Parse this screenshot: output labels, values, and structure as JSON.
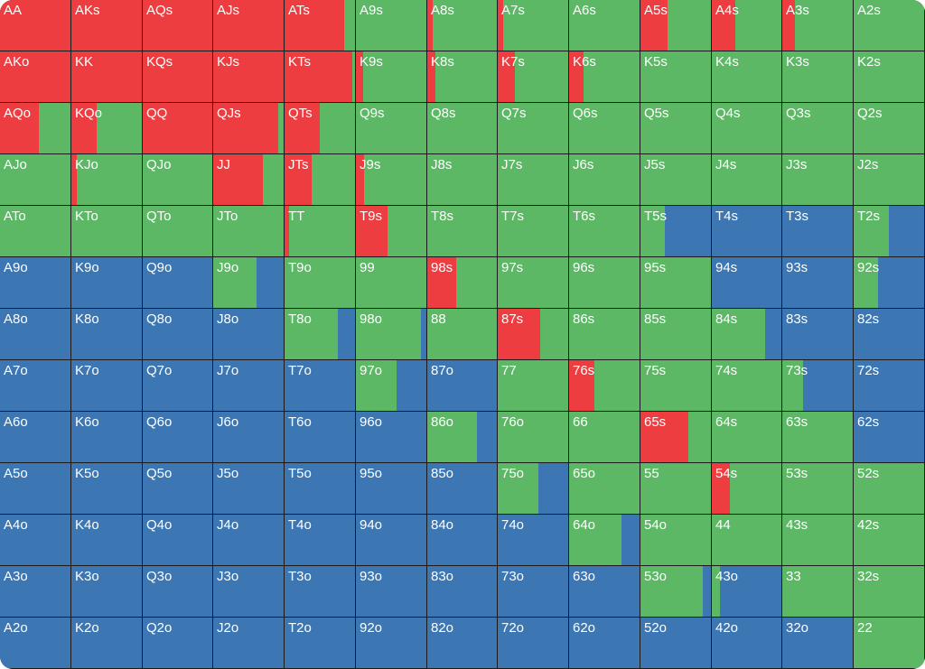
{
  "colors": {
    "raise": "#ee3d40",
    "call": "#5cb865",
    "fold": "#3c76b3"
  },
  "rows": [
    [
      "AA",
      "AKs",
      "AQs",
      "AJs",
      "ATs",
      "A9s",
      "A8s",
      "A7s",
      "A6s",
      "A5s",
      "A4s",
      "A3s",
      "A2s"
    ],
    [
      "AKo",
      "KK",
      "KQs",
      "KJs",
      "KTs",
      "K9s",
      "K8s",
      "K7s",
      "K6s",
      "K5s",
      "K4s",
      "K3s",
      "K2s"
    ],
    [
      "AQo",
      "KQo",
      "QQ",
      "QJs",
      "QTs",
      "Q9s",
      "Q8s",
      "Q7s",
      "Q6s",
      "Q5s",
      "Q4s",
      "Q3s",
      "Q2s"
    ],
    [
      "AJo",
      "KJo",
      "QJo",
      "JJ",
      "JTs",
      "J9s",
      "J8s",
      "J7s",
      "J6s",
      "J5s",
      "J4s",
      "J3s",
      "J2s"
    ],
    [
      "ATo",
      "KTo",
      "QTo",
      "JTo",
      "TT",
      "T9s",
      "T8s",
      "T7s",
      "T6s",
      "T5s",
      "T4s",
      "T3s",
      "T2s"
    ],
    [
      "A9o",
      "K9o",
      "Q9o",
      "J9o",
      "T9o",
      "99",
      "98s",
      "97s",
      "96s",
      "95s",
      "94s",
      "93s",
      "92s"
    ],
    [
      "A8o",
      "K8o",
      "Q8o",
      "J8o",
      "T8o",
      "98o",
      "88",
      "87s",
      "86s",
      "85s",
      "84s",
      "83s",
      "82s"
    ],
    [
      "A7o",
      "K7o",
      "Q7o",
      "J7o",
      "T7o",
      "97o",
      "87o",
      "77",
      "76s",
      "75s",
      "74s",
      "73s",
      "72s"
    ],
    [
      "A6o",
      "K6o",
      "Q6o",
      "J6o",
      "T6o",
      "96o",
      "86o",
      "76o",
      "66",
      "65s",
      "64s",
      "63s",
      "62s"
    ],
    [
      "A5o",
      "K5o",
      "Q5o",
      "J5o",
      "T5o",
      "95o",
      "85o",
      "75o",
      "65o",
      "55",
      "54s",
      "53s",
      "52s"
    ],
    [
      "A4o",
      "K4o",
      "Q4o",
      "J4o",
      "T4o",
      "94o",
      "84o",
      "74o",
      "64o",
      "54o",
      "44",
      "43s",
      "42s"
    ],
    [
      "A3o",
      "K3o",
      "Q3o",
      "J3o",
      "T3o",
      "93o",
      "83o",
      "73o",
      "63o",
      "53o",
      "43o",
      "33",
      "32s"
    ],
    [
      "A2o",
      "K2o",
      "Q2o",
      "J2o",
      "T2o",
      "92o",
      "82o",
      "72o",
      "62o",
      "52o",
      "42o",
      "32o",
      "22"
    ]
  ],
  "mix": [
    [
      [
        1,
        0,
        0
      ],
      [
        1,
        0,
        0
      ],
      [
        1,
        0,
        0
      ],
      [
        1,
        0,
        0
      ],
      [
        0.85,
        0.15,
        0
      ],
      [
        0,
        1,
        0
      ],
      [
        0.08,
        0.92,
        0
      ],
      [
        0.08,
        0.92,
        0
      ],
      [
        0,
        1,
        0
      ],
      [
        0.38,
        0.62,
        0
      ],
      [
        0.34,
        0.66,
        0
      ],
      [
        0.18,
        0.82,
        0
      ],
      [
        0,
        1,
        0
      ]
    ],
    [
      [
        1,
        0,
        0
      ],
      [
        1,
        0,
        0
      ],
      [
        1,
        0,
        0
      ],
      [
        1,
        0,
        0
      ],
      [
        0.96,
        0.04,
        0
      ],
      [
        0.1,
        0.9,
        0
      ],
      [
        0.12,
        0.88,
        0
      ],
      [
        0.24,
        0.76,
        0
      ],
      [
        0.2,
        0.8,
        0
      ],
      [
        0,
        1,
        0
      ],
      [
        0,
        1,
        0
      ],
      [
        0,
        1,
        0
      ],
      [
        0,
        1,
        0
      ]
    ],
    [
      [
        0.55,
        0.45,
        0
      ],
      [
        0.36,
        0.64,
        0
      ],
      [
        1,
        0,
        0
      ],
      [
        0.92,
        0.08,
        0
      ],
      [
        0.5,
        0.5,
        0
      ],
      [
        0,
        1,
        0
      ],
      [
        0,
        1,
        0
      ],
      [
        0,
        1,
        0
      ],
      [
        0,
        1,
        0
      ],
      [
        0,
        1,
        0
      ],
      [
        0,
        1,
        0
      ],
      [
        0,
        1,
        0
      ],
      [
        0,
        1,
        0
      ]
    ],
    [
      [
        0,
        1,
        0
      ],
      [
        0.08,
        0.92,
        0
      ],
      [
        0,
        1,
        0
      ],
      [
        0.7,
        0.3,
        0
      ],
      [
        0.38,
        0.62,
        0
      ],
      [
        0.12,
        0.88,
        0
      ],
      [
        0,
        1,
        0
      ],
      [
        0,
        1,
        0
      ],
      [
        0,
        1,
        0
      ],
      [
        0,
        1,
        0
      ],
      [
        0,
        1,
        0
      ],
      [
        0,
        1,
        0
      ],
      [
        0,
        1,
        0
      ]
    ],
    [
      [
        0,
        1,
        0
      ],
      [
        0,
        1,
        0
      ],
      [
        0,
        1,
        0
      ],
      [
        0,
        1,
        0
      ],
      [
        0.06,
        0.94,
        0
      ],
      [
        0.45,
        0.55,
        0
      ],
      [
        0,
        1,
        0
      ],
      [
        0,
        1,
        0
      ],
      [
        0,
        1,
        0
      ],
      [
        0,
        0.34,
        0.66
      ],
      [
        0,
        0,
        1
      ],
      [
        0,
        0,
        1
      ],
      [
        0,
        0.5,
        0.5
      ]
    ],
    [
      [
        0,
        0,
        1
      ],
      [
        0,
        0,
        1
      ],
      [
        0,
        0,
        1
      ],
      [
        0,
        0.62,
        0.38
      ],
      [
        0,
        1,
        0
      ],
      [
        0,
        1,
        0
      ],
      [
        0.42,
        0.58,
        0
      ],
      [
        0,
        1,
        0
      ],
      [
        0,
        1,
        0
      ],
      [
        0,
        1,
        0
      ],
      [
        0,
        0,
        1
      ],
      [
        0,
        0,
        1
      ],
      [
        0,
        0.34,
        0.66
      ]
    ],
    [
      [
        0,
        0,
        1
      ],
      [
        0,
        0,
        1
      ],
      [
        0,
        0,
        1
      ],
      [
        0,
        0,
        1
      ],
      [
        0,
        0.75,
        0.25
      ],
      [
        0,
        0.92,
        0.08
      ],
      [
        0,
        1,
        0
      ],
      [
        0.6,
        0.4,
        0
      ],
      [
        0,
        1,
        0
      ],
      [
        0,
        1,
        0
      ],
      [
        0,
        0.76,
        0.24
      ],
      [
        0,
        0,
        1
      ],
      [
        0,
        0,
        1
      ]
    ],
    [
      [
        0,
        0,
        1
      ],
      [
        0,
        0,
        1
      ],
      [
        0,
        0,
        1
      ],
      [
        0,
        0,
        1
      ],
      [
        0,
        0,
        1
      ],
      [
        0,
        0.58,
        0.42
      ],
      [
        0,
        0,
        1
      ],
      [
        0,
        1,
        0
      ],
      [
        0.36,
        0.64,
        0
      ],
      [
        0,
        1,
        0
      ],
      [
        0,
        1,
        0
      ],
      [
        0,
        0.3,
        0.7
      ],
      [
        0,
        0,
        1
      ]
    ],
    [
      [
        0,
        0,
        1
      ],
      [
        0,
        0,
        1
      ],
      [
        0,
        0,
        1
      ],
      [
        0,
        0,
        1
      ],
      [
        0,
        0,
        1
      ],
      [
        0,
        0,
        1
      ],
      [
        0,
        0.72,
        0.28
      ],
      [
        0,
        1,
        0
      ],
      [
        0,
        1,
        0
      ],
      [
        0.68,
        0.32,
        0
      ],
      [
        0,
        1,
        0
      ],
      [
        0,
        1,
        0
      ],
      [
        0,
        0,
        1
      ]
    ],
    [
      [
        0,
        0,
        1
      ],
      [
        0,
        0,
        1
      ],
      [
        0,
        0,
        1
      ],
      [
        0,
        0,
        1
      ],
      [
        0,
        0,
        1
      ],
      [
        0,
        0,
        1
      ],
      [
        0,
        0,
        1
      ],
      [
        0,
        0.58,
        0.42
      ],
      [
        0,
        1,
        0
      ],
      [
        0,
        1,
        0
      ],
      [
        0.26,
        0.74,
        0
      ],
      [
        0,
        1,
        0
      ],
      [
        0,
        1,
        0
      ]
    ],
    [
      [
        0,
        0,
        1
      ],
      [
        0,
        0,
        1
      ],
      [
        0,
        0,
        1
      ],
      [
        0,
        0,
        1
      ],
      [
        0,
        0,
        1
      ],
      [
        0,
        0,
        1
      ],
      [
        0,
        0,
        1
      ],
      [
        0,
        0,
        1
      ],
      [
        0,
        0.74,
        0.26
      ],
      [
        0,
        1,
        0
      ],
      [
        0,
        1,
        0
      ],
      [
        0,
        1,
        0
      ],
      [
        0,
        1,
        0
      ]
    ],
    [
      [
        0,
        0,
        1
      ],
      [
        0,
        0,
        1
      ],
      [
        0,
        0,
        1
      ],
      [
        0,
        0,
        1
      ],
      [
        0,
        0,
        1
      ],
      [
        0,
        0,
        1
      ],
      [
        0,
        0,
        1
      ],
      [
        0,
        0,
        1
      ],
      [
        0,
        0,
        1
      ],
      [
        0,
        0.88,
        0.12
      ],
      [
        0,
        0.12,
        0.88
      ],
      [
        0,
        1,
        0
      ],
      [
        0,
        1,
        0
      ]
    ],
    [
      [
        0,
        0,
        1
      ],
      [
        0,
        0,
        1
      ],
      [
        0,
        0,
        1
      ],
      [
        0,
        0,
        1
      ],
      [
        0,
        0,
        1
      ],
      [
        0,
        0,
        1
      ],
      [
        0,
        0,
        1
      ],
      [
        0,
        0,
        1
      ],
      [
        0,
        0,
        1
      ],
      [
        0,
        0,
        1
      ],
      [
        0,
        0,
        1
      ],
      [
        0,
        0,
        1
      ],
      [
        0,
        1,
        0
      ]
    ]
  ]
}
